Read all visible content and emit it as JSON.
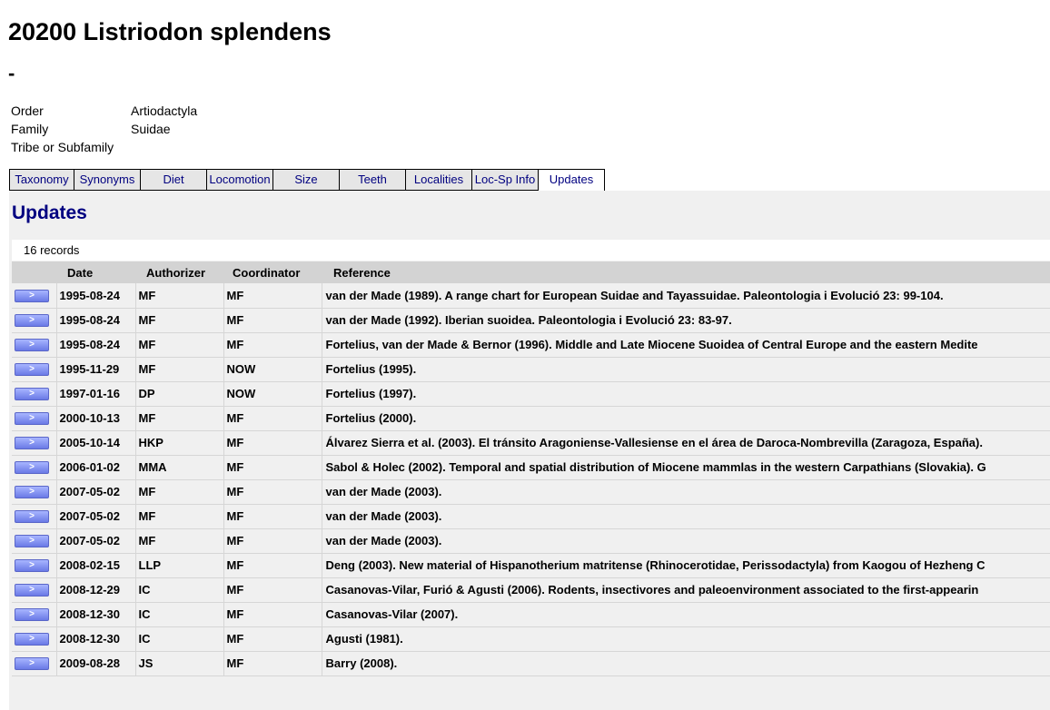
{
  "page": {
    "title": "20200 Listriodon splendens",
    "subtitle": "-"
  },
  "taxonomy": [
    {
      "label": "Order",
      "value": "Artiodactyla"
    },
    {
      "label": "Family",
      "value": "Suidae"
    },
    {
      "label": "Tribe or Subfamily",
      "value": ""
    }
  ],
  "tabs": [
    {
      "label": "Taxonomy",
      "active": false
    },
    {
      "label": "Synonyms",
      "active": false
    },
    {
      "label": "Diet",
      "active": false
    },
    {
      "label": "Locomotion",
      "active": false
    },
    {
      "label": "Size",
      "active": false
    },
    {
      "label": "Teeth",
      "active": false
    },
    {
      "label": "Localities",
      "active": false
    },
    {
      "label": "Loc-Sp Info",
      "active": false
    },
    {
      "label": "Updates",
      "active": true
    }
  ],
  "updates": {
    "title": "Updates",
    "record_count": "16 records",
    "button_label": ">",
    "columns": [
      "",
      "Date",
      "Authorizer",
      "Coordinator",
      "Reference"
    ],
    "rows": [
      {
        "date": "1995-08-24",
        "authorizer": "MF",
        "coordinator": "MF",
        "reference": "van der Made (1989). A range chart for European Suidae and Tayassuidae. Paleontologia i Evolució 23: 99-104."
      },
      {
        "date": "1995-08-24",
        "authorizer": "MF",
        "coordinator": "MF",
        "reference": "van der Made (1992). Iberian suoidea. Paleontologia i Evolució 23: 83-97."
      },
      {
        "date": "1995-08-24",
        "authorizer": "MF",
        "coordinator": "MF",
        "reference": "Fortelius, van der Made & Bernor (1996). Middle and Late Miocene Suoidea of Central Europe and the eastern Medite"
      },
      {
        "date": "1995-11-29",
        "authorizer": "MF",
        "coordinator": "NOW",
        "reference": "Fortelius (1995)."
      },
      {
        "date": "1997-01-16",
        "authorizer": "DP",
        "coordinator": "NOW",
        "reference": "Fortelius (1997)."
      },
      {
        "date": "2000-10-13",
        "authorizer": "MF",
        "coordinator": "MF",
        "reference": "Fortelius (2000)."
      },
      {
        "date": "2005-10-14",
        "authorizer": "HKP",
        "coordinator": "MF",
        "reference": "Álvarez Sierra et al. (2003). El tránsito Aragoniense-Vallesiense en el área de Daroca-Nombrevilla (Zaragoza, España)."
      },
      {
        "date": "2006-01-02",
        "authorizer": "MMA",
        "coordinator": "MF",
        "reference": "Sabol & Holec (2002). Temporal and spatial distribution of Miocene mammlas in the western Carpathians (Slovakia). G"
      },
      {
        "date": "2007-05-02",
        "authorizer": "MF",
        "coordinator": "MF",
        "reference": "van der Made (2003)."
      },
      {
        "date": "2007-05-02",
        "authorizer": "MF",
        "coordinator": "MF",
        "reference": "van der Made (2003)."
      },
      {
        "date": "2007-05-02",
        "authorizer": "MF",
        "coordinator": "MF",
        "reference": "van der Made (2003)."
      },
      {
        "date": "2008-02-15",
        "authorizer": "LLP",
        "coordinator": "MF",
        "reference": "Deng (2003). New material of Hispanotherium matritense (Rhinocerotidae, Perissodactyla) from Kaogou of Hezheng C"
      },
      {
        "date": "2008-12-29",
        "authorizer": "IC",
        "coordinator": "MF",
        "reference": "Casanovas-Vilar, Furió & Agusti (2006). Rodents, insectivores and paleoenvironment associated to the first-appearin"
      },
      {
        "date": "2008-12-30",
        "authorizer": "IC",
        "coordinator": "MF",
        "reference": "Casanovas-Vilar (2007)."
      },
      {
        "date": "2008-12-30",
        "authorizer": "IC",
        "coordinator": "MF",
        "reference": "Agusti (1981)."
      },
      {
        "date": "2009-08-28",
        "authorizer": "JS",
        "coordinator": "MF",
        "reference": "Barry (2008)."
      }
    ]
  }
}
